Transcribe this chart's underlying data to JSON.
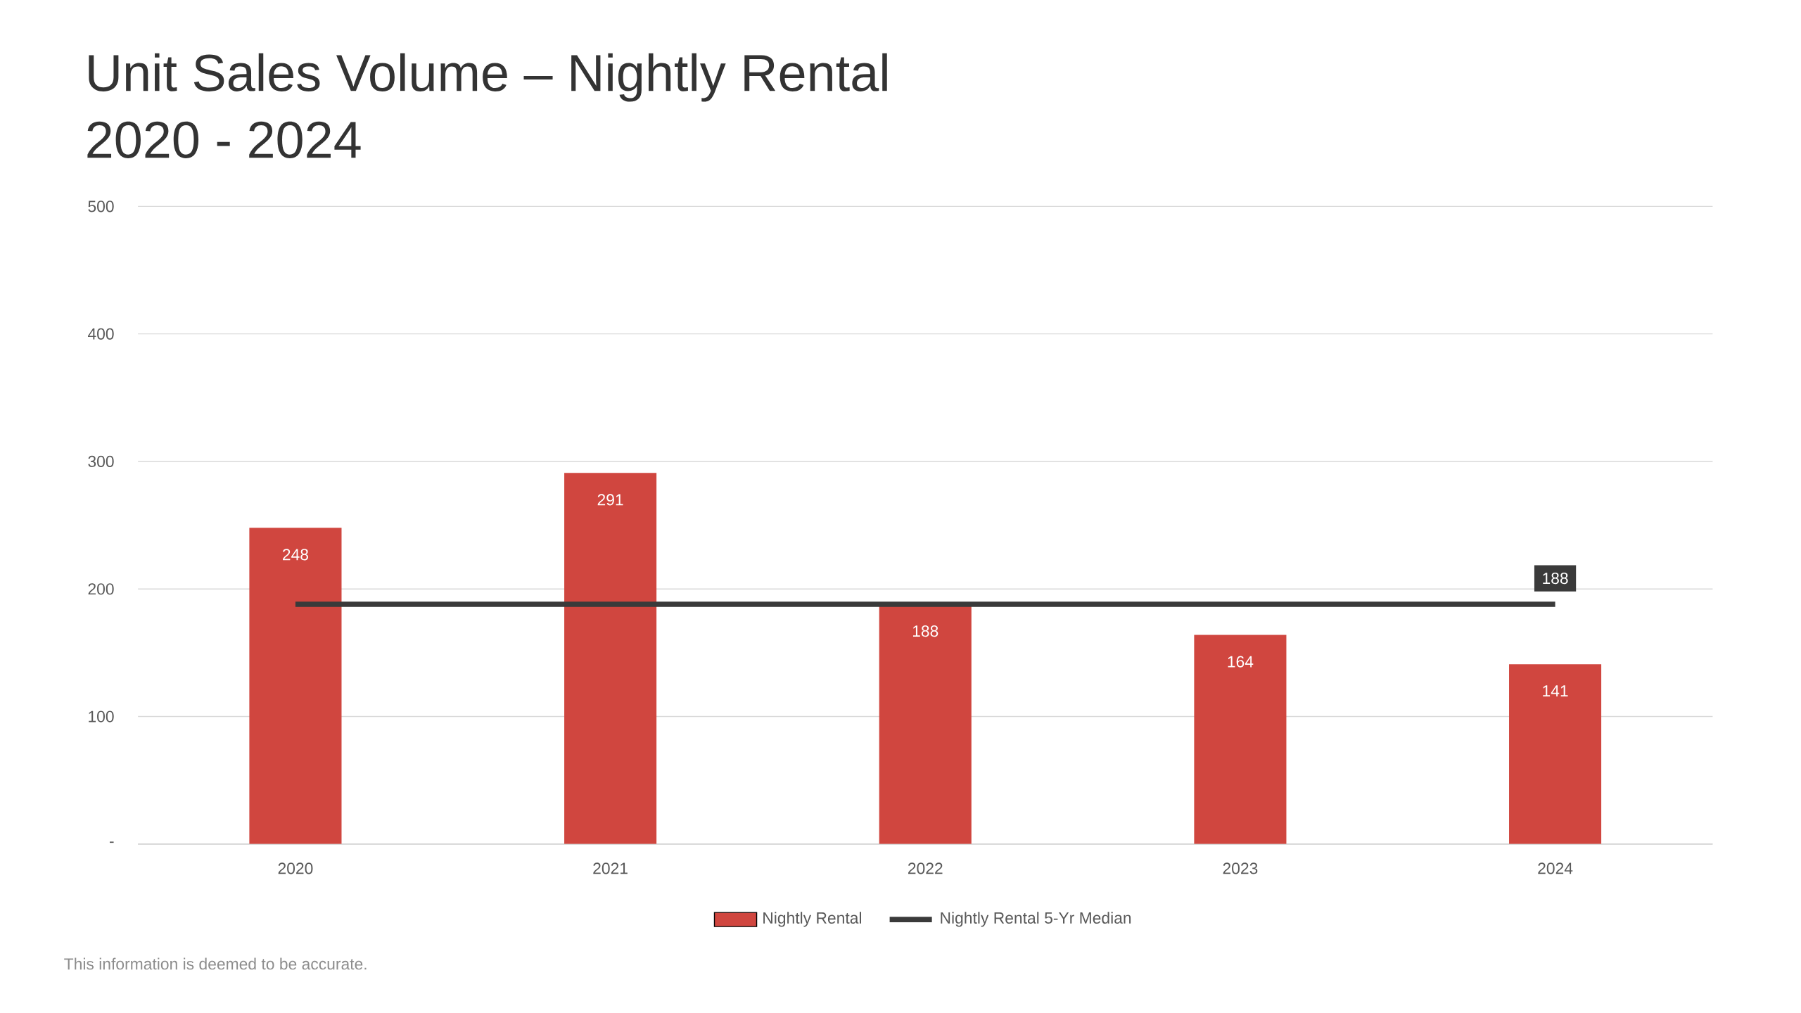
{
  "chart_data": {
    "type": "bar",
    "title": "Unit Sales Volume – Nightly Rental",
    "subtitle": "2020 - 2024",
    "categories": [
      "2020",
      "2021",
      "2022",
      "2023",
      "2024"
    ],
    "series": [
      {
        "name": "Nightly Rental",
        "color": "#d0463f",
        "values": [
          248,
          291,
          188,
          164,
          141
        ],
        "value_labels": [
          "248",
          "291",
          "188",
          "164",
          "141"
        ]
      },
      {
        "name": "Nightly Rental 5-Yr Median",
        "type": "line",
        "color": "#3a3a3a",
        "values": [
          188,
          188,
          188,
          188,
          188
        ],
        "value_labels": [
          null,
          null,
          null,
          null,
          "188"
        ]
      }
    ],
    "ylim": [
      0,
      500
    ],
    "yticks": [
      {
        "value": 0,
        "label": "-"
      },
      100,
      200,
      300,
      400,
      500
    ],
    "grid": "y",
    "legend": "bottom",
    "annotations": [
      "This information is deemed to be accurate."
    ]
  }
}
